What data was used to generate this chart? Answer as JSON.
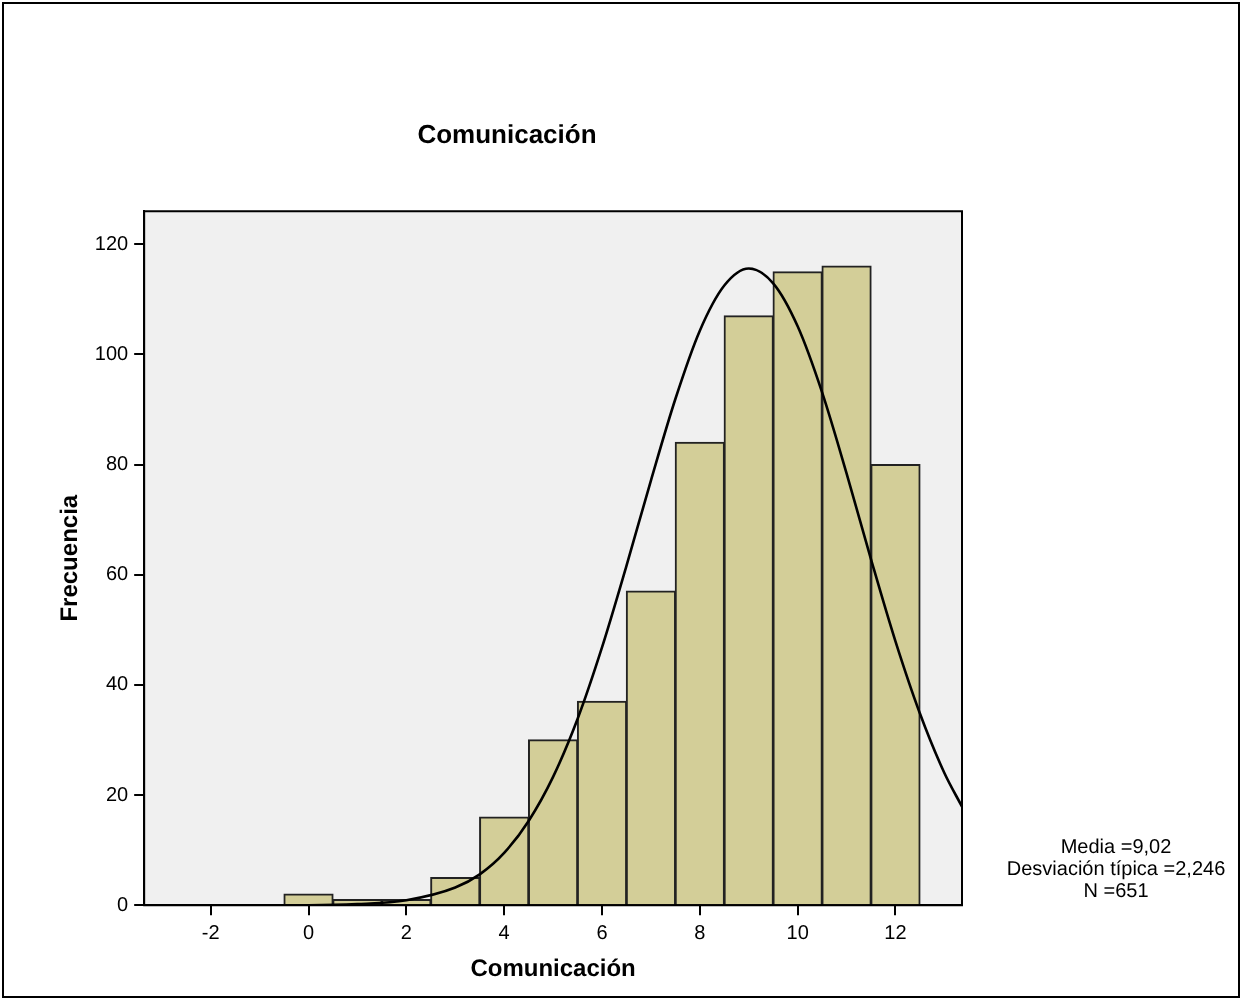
{
  "chart_data": {
    "type": "histogram",
    "title": "Comunicación",
    "xlabel": "Comunicación",
    "ylabel": "Frecuencia",
    "bins": [
      -0.5,
      0.5,
      1.5,
      2.5,
      3.5,
      4.5,
      5.5,
      6.5,
      7.5,
      8.5,
      9.5,
      10.5,
      11.5,
      12.5
    ],
    "values": [
      2,
      1,
      1,
      5,
      16,
      30,
      37,
      57,
      84,
      107,
      115,
      116,
      80
    ],
    "color": "#d3ce98",
    "series": [
      {
        "type": "line",
        "color": "#000000",
        "marker": "none",
        "x": [
          -3.36,
          -2,
          -1,
          0,
          1,
          2,
          3,
          3.5,
          4,
          4.5,
          5,
          5.5,
          6,
          6.5,
          7,
          7.5,
          8,
          8.5,
          9,
          9.5,
          10,
          10.5,
          11,
          11.5,
          12,
          12.5,
          13,
          13.36
        ],
        "values": [
          0,
          0,
          0,
          0,
          0.2,
          0.9,
          3.2,
          5.6,
          9.5,
          15.3,
          23.3,
          33.8,
          46.8,
          61.6,
          77.1,
          91.9,
          104.3,
          112.5,
          115.6,
          112.9,
          105.1,
          93.1,
          78.4,
          62.8,
          47.9,
          34.8,
          24,
          17.9
        ]
      }
    ],
    "xlim": [
      -3.36,
      13.36
    ],
    "xticks": [
      -2,
      0,
      2,
      4,
      6,
      8,
      10,
      12
    ],
    "ylim": [
      0,
      126
    ],
    "yticks": [
      0,
      20,
      40,
      60,
      80,
      100,
      120
    ],
    "grid": false,
    "legend": false,
    "annotations": [
      "Media =9,02",
      "Desviación típica =2,246",
      "N =651"
    ]
  }
}
